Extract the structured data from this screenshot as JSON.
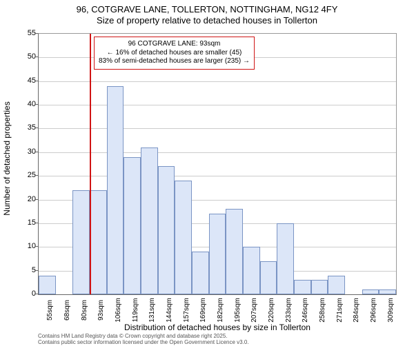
{
  "chart": {
    "type": "histogram",
    "title_line1": "96, COTGRAVE LANE, TOLLERTON, NOTTINGHAM, NG12 4FY",
    "title_line2": "Size of property relative to detached houses in Tollerton",
    "title_fontsize": 13,
    "ylabel": "Number of detached properties",
    "xlabel": "Distribution of detached houses by size in Tollerton",
    "label_fontsize": 12,
    "ylim": [
      0,
      55
    ],
    "ytick_step": 5,
    "yticks": [
      0,
      5,
      10,
      15,
      20,
      25,
      30,
      35,
      40,
      45,
      50,
      55
    ],
    "x_categories": [
      "55sqm",
      "68sqm",
      "80sqm",
      "93sqm",
      "106sqm",
      "119sqm",
      "131sqm",
      "144sqm",
      "157sqm",
      "169sqm",
      "182sqm",
      "195sqm",
      "207sqm",
      "220sqm",
      "233sqm",
      "246sqm",
      "258sqm",
      "271sqm",
      "284sqm",
      "296sqm",
      "309sqm"
    ],
    "values": [
      4,
      0,
      22,
      22,
      44,
      29,
      31,
      27,
      24,
      9,
      17,
      18,
      10,
      7,
      15,
      3,
      3,
      4,
      0,
      1,
      1
    ],
    "bar_fill": "#dce6f8",
    "bar_border": "#7a94c4",
    "background_color": "#ffffff",
    "grid_color": "#cccccc",
    "axis_color": "#666666",
    "marker": {
      "color": "#d01313",
      "x_index": 3,
      "callout_line1": "96 COTGRAVE LANE: 93sqm",
      "callout_line2": "← 16% of detached houses are smaller (45)",
      "callout_line3": "83% of semi-detached houses are larger (235) →"
    },
    "tick_fontsize": 11,
    "footer_line1": "Contains HM Land Registry data © Crown copyright and database right 2025.",
    "footer_line2": "Contains public sector information licensed under the Open Government Licence v3.0."
  }
}
